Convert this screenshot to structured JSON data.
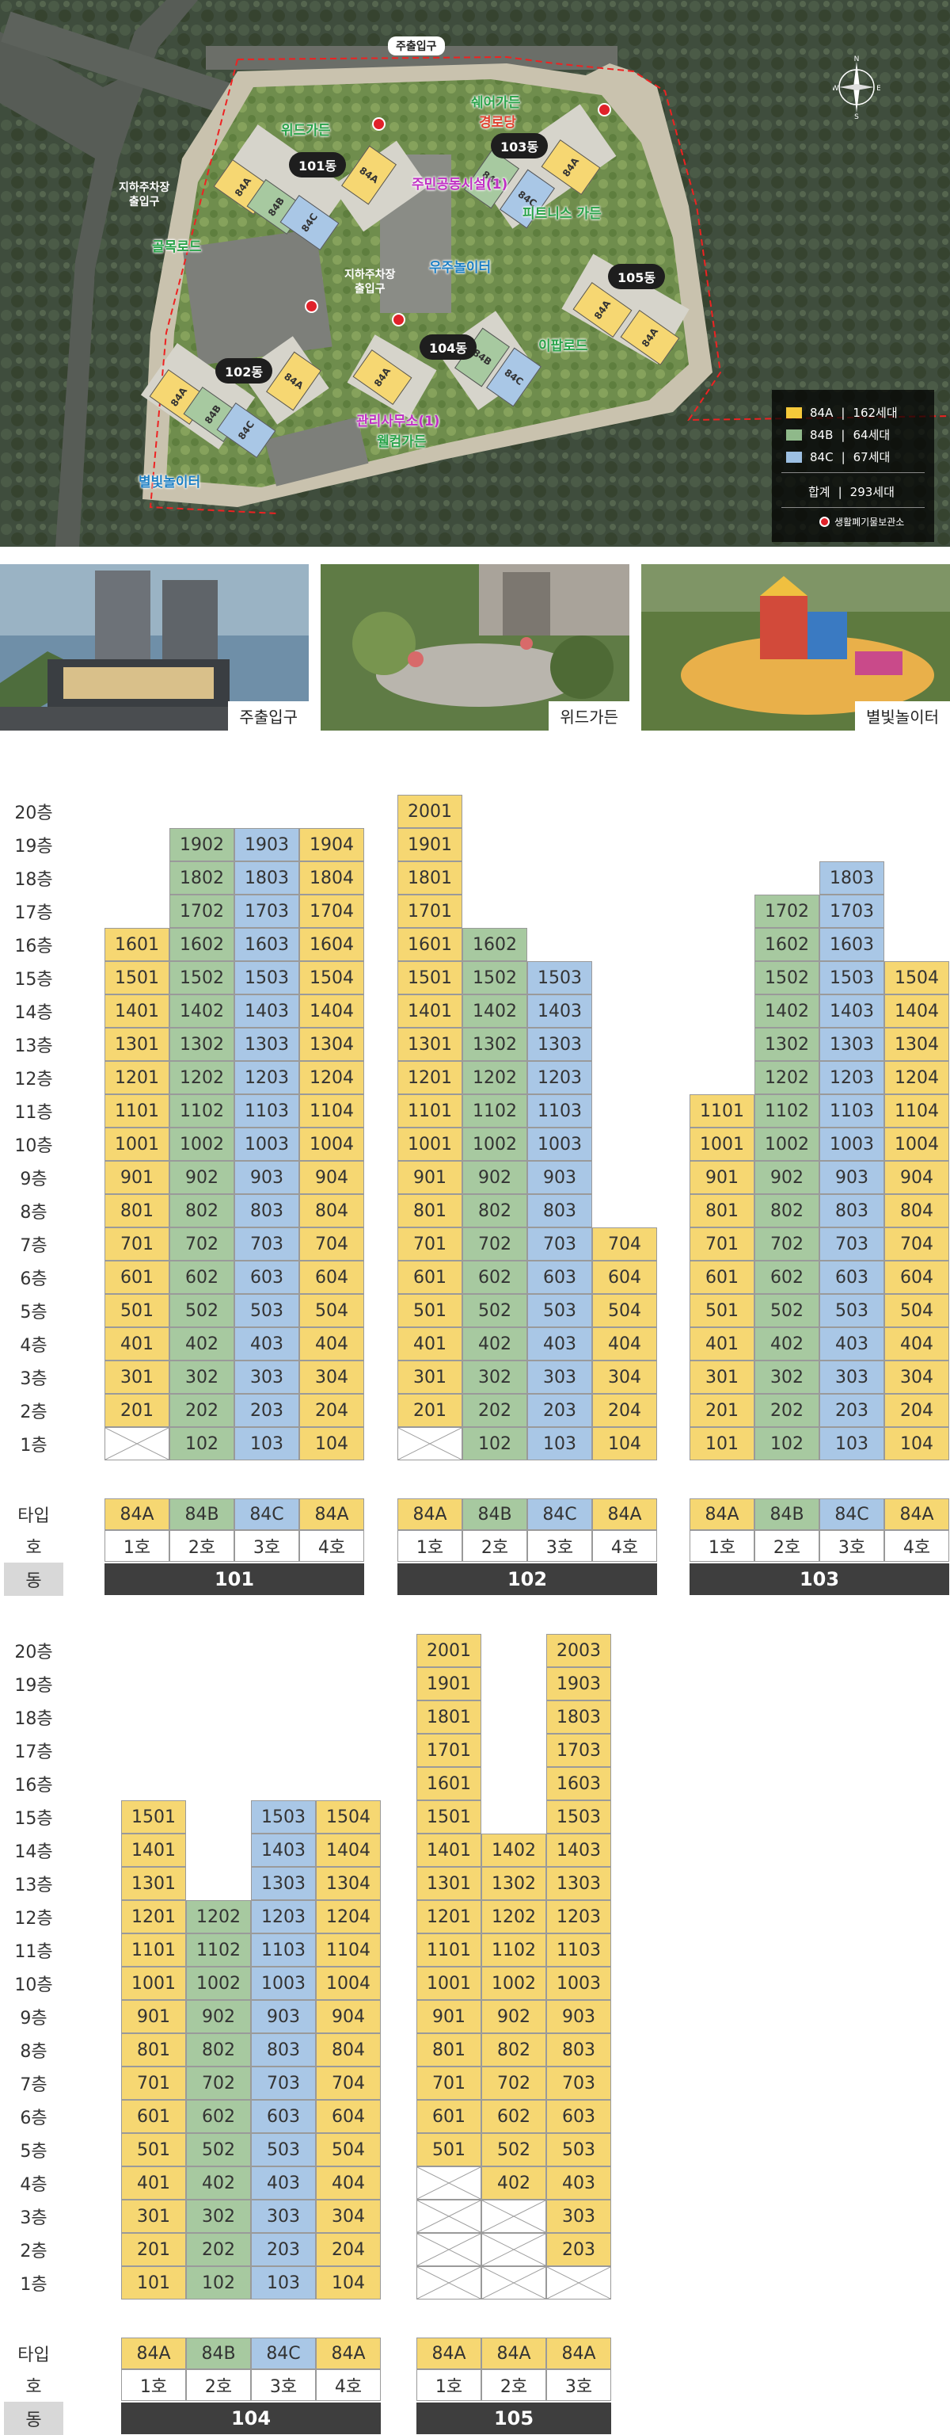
{
  "site_plan": {
    "labels": {
      "main_entrance": "주출입구",
      "underground_parking_1": "지하주차장\n출입구",
      "underground_parking_2": "지하주차장\n출입구"
    },
    "buildings": [
      "101동",
      "102동",
      "103동",
      "104동",
      "105동"
    ],
    "facilities": {
      "wood_garden": "위드가든",
      "share_garden": "쉐어가든",
      "senior_center": "경로당",
      "community": "주민공동시설(1)",
      "space_playground": "우주놀이터",
      "fitness_garden": "피트니스 가든",
      "alley_road": "골목로드",
      "driveway_road": "이팝로드",
      "management": "관리사무소(1)",
      "welcome_garden": "웰컴가든",
      "starlight_playground": "별빛놀이터"
    },
    "unit_marks": [
      "84A",
      "84B",
      "84C"
    ],
    "legend": {
      "items": [
        {
          "type": "84A",
          "count": "162세대",
          "color": "#f6c93a"
        },
        {
          "type": "84B",
          "count": "64세대",
          "color": "#8fb98a"
        },
        {
          "type": "84C",
          "count": "67세대",
          "color": "#9dc0e3"
        }
      ],
      "total_label": "합계",
      "total_count": "293세대",
      "waste_note": "생활폐기물보관소"
    },
    "compass": {
      "n": "N",
      "s": "S",
      "e": "E",
      "w": "W"
    }
  },
  "photos": [
    {
      "caption": "주출입구"
    },
    {
      "caption": "위드가든"
    },
    {
      "caption": "별빛놀이터"
    }
  ],
  "tables": [
    {
      "floors": [
        "20층",
        "19층",
        "18층",
        "17층",
        "16층",
        "15층",
        "14층",
        "13층",
        "12층",
        "11층",
        "10층",
        "9층",
        "8층",
        "7층",
        "6층",
        "5층",
        "4층",
        "3층",
        "2층",
        "1층"
      ],
      "labels": {
        "type": "타입",
        "ho": "호",
        "dong": "동"
      },
      "dongs": [
        {
          "name": "101",
          "columns": [
            {
              "type": "84A",
              "ho": "1호",
              "units": [
                "",
                "",
                "",
                "",
                "1601",
                "1501",
                "1401",
                "1301",
                "1201",
                "1101",
                "1001",
                "901",
                "801",
                "701",
                "601",
                "501",
                "401",
                "301",
                "201",
                "X"
              ]
            },
            {
              "type": "84B",
              "ho": "2호",
              "units": [
                "",
                "1902",
                "1802",
                "1702",
                "1602",
                "1502",
                "1402",
                "1302",
                "1202",
                "1102",
                "1002",
                "902",
                "802",
                "702",
                "602",
                "502",
                "402",
                "302",
                "202",
                "102"
              ]
            },
            {
              "type": "84C",
              "ho": "3호",
              "units": [
                "",
                "1903",
                "1803",
                "1703",
                "1603",
                "1503",
                "1403",
                "1303",
                "1203",
                "1103",
                "1003",
                "903",
                "803",
                "703",
                "603",
                "503",
                "403",
                "303",
                "203",
                "103"
              ]
            },
            {
              "type": "84A",
              "ho": "4호",
              "units": [
                "",
                "1904",
                "1804",
                "1704",
                "1604",
                "1504",
                "1404",
                "1304",
                "1204",
                "1104",
                "1004",
                "904",
                "804",
                "704",
                "604",
                "504",
                "404",
                "304",
                "204",
                "104"
              ]
            }
          ]
        },
        {
          "name": "102",
          "columns": [
            {
              "type": "84A",
              "ho": "1호",
              "units": [
                "2001",
                "1901",
                "1801",
                "1701",
                "1601",
                "1501",
                "1401",
                "1301",
                "1201",
                "1101",
                "1001",
                "901",
                "801",
                "701",
                "601",
                "501",
                "401",
                "301",
                "201",
                "X"
              ]
            },
            {
              "type": "84B",
              "ho": "2호",
              "units": [
                "",
                "",
                "",
                "",
                "1602",
                "1502",
                "1402",
                "1302",
                "1202",
                "1102",
                "1002",
                "902",
                "802",
                "702",
                "602",
                "502",
                "402",
                "302",
                "202",
                "102"
              ]
            },
            {
              "type": "84C",
              "ho": "3호",
              "units": [
                "",
                "",
                "",
                "",
                "",
                "1503",
                "1403",
                "1303",
                "1203",
                "1103",
                "1003",
                "903",
                "803",
                "703",
                "603",
                "503",
                "403",
                "303",
                "203",
                "103"
              ]
            },
            {
              "type": "84A",
              "ho": "4호",
              "units": [
                "",
                "",
                "",
                "",
                "",
                "",
                "",
                "",
                "",
                "",
                "",
                "",
                "",
                "704",
                "604",
                "504",
                "404",
                "304",
                "204",
                "104"
              ]
            }
          ]
        },
        {
          "name": "103",
          "columns": [
            {
              "type": "84A",
              "ho": "1호",
              "units": [
                "",
                "",
                "",
                "",
                "",
                "",
                "",
                "",
                "",
                "1101",
                "1001",
                "901",
                "801",
                "701",
                "601",
                "501",
                "401",
                "301",
                "201",
                "101"
              ]
            },
            {
              "type": "84B",
              "ho": "2호",
              "units": [
                "",
                "",
                "",
                "1702",
                "1602",
                "1502",
                "1402",
                "1302",
                "1202",
                "1102",
                "1002",
                "902",
                "802",
                "702",
                "602",
                "502",
                "402",
                "302",
                "202",
                "102"
              ]
            },
            {
              "type": "84C",
              "ho": "3호",
              "units": [
                "",
                "",
                "1803",
                "1703",
                "1603",
                "1503",
                "1403",
                "1303",
                "1203",
                "1103",
                "1003",
                "903",
                "803",
                "703",
                "603",
                "503",
                "403",
                "303",
                "203",
                "103"
              ]
            },
            {
              "type": "84A",
              "ho": "4호",
              "units": [
                "",
                "",
                "",
                "",
                "",
                "1504",
                "1404",
                "1304",
                "1204",
                "1104",
                "1004",
                "904",
                "804",
                "704",
                "604",
                "504",
                "404",
                "304",
                "204",
                "104"
              ]
            }
          ]
        }
      ]
    },
    {
      "floors": [
        "20층",
        "19층",
        "18층",
        "17층",
        "16층",
        "15층",
        "14층",
        "13층",
        "12층",
        "11층",
        "10층",
        "9층",
        "8층",
        "7층",
        "6층",
        "5층",
        "4층",
        "3층",
        "2층",
        "1층"
      ],
      "labels": {
        "type": "타입",
        "ho": "호",
        "dong": "동"
      },
      "dongs": [
        {
          "name": "104",
          "columns": [
            {
              "type": "84A",
              "ho": "1호",
              "units": [
                "",
                "",
                "",
                "",
                "",
                "1501",
                "1401",
                "1301",
                "1201",
                "1101",
                "1001",
                "901",
                "801",
                "701",
                "601",
                "501",
                "401",
                "301",
                "201",
                "101"
              ]
            },
            {
              "type": "84B",
              "ho": "2호",
              "units": [
                "",
                "",
                "",
                "",
                "",
                "",
                "",
                "",
                "1202",
                "1102",
                "1002",
                "902",
                "802",
                "702",
                "602",
                "502",
                "402",
                "302",
                "202",
                "102"
              ]
            },
            {
              "type": "84C",
              "ho": "3호",
              "units": [
                "",
                "",
                "",
                "",
                "",
                "1503",
                "1403",
                "1303",
                "1203",
                "1103",
                "1003",
                "903",
                "803",
                "703",
                "603",
                "503",
                "403",
                "303",
                "203",
                "103"
              ]
            },
            {
              "type": "84A",
              "ho": "4호",
              "units": [
                "",
                "",
                "",
                "",
                "",
                "1504",
                "1404",
                "1304",
                "1204",
                "1104",
                "1004",
                "904",
                "804",
                "704",
                "604",
                "504",
                "404",
                "304",
                "204",
                "104"
              ]
            }
          ]
        },
        {
          "name": "105",
          "columns": [
            {
              "type": "84A",
              "ho": "1호",
              "units": [
                "2001",
                "1901",
                "1801",
                "1701",
                "1601",
                "1501",
                "1401",
                "1301",
                "1201",
                "1101",
                "1001",
                "901",
                "801",
                "701",
                "601",
                "501",
                "X",
                "X",
                "X",
                "X"
              ]
            },
            {
              "type": "84A",
              "ho": "2호",
              "units": [
                "",
                "",
                "",
                "",
                "",
                "",
                "1402",
                "1302",
                "1202",
                "1102",
                "1002",
                "902",
                "802",
                "702",
                "602",
                "502",
                "402",
                "X",
                "X",
                "X"
              ]
            },
            {
              "type": "84A",
              "ho": "3호",
              "units": [
                "2003",
                "1903",
                "1803",
                "1703",
                "1603",
                "1503",
                "1403",
                "1303",
                "1203",
                "1103",
                "1003",
                "903",
                "803",
                "703",
                "603",
                "503",
                "403",
                "303",
                "203",
                "X"
              ]
            }
          ]
        }
      ]
    }
  ],
  "colors": {
    "84A": "#f6d772",
    "84B": "#a7c9a0",
    "84C": "#a9c7e6",
    "dong_bar": "#3e3e3e"
  }
}
